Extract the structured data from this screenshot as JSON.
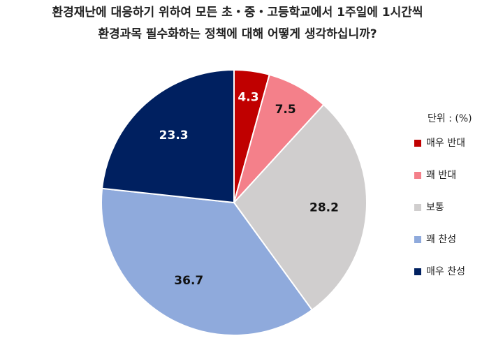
{
  "chart_data": {
    "type": "pie",
    "title": [
      "환경재난에 대응하기 위하여 모든 초・중・고등학교에서 1주일에 1시간씩",
      "환경과목 필수화하는 정책에 대해 어떻게 생각하십니까?"
    ],
    "legend_title": "단위 : (%)",
    "categories": [
      "매우 반대",
      "꽤 반대",
      "보통",
      "꽤 찬성",
      "매우 찬성"
    ],
    "values": [
      4.3,
      7.5,
      28.2,
      36.7,
      23.3
    ],
    "colors": [
      "#c00000",
      "#f4808a",
      "#d0cece",
      "#8faadc",
      "#002060"
    ],
    "legend": "right"
  }
}
